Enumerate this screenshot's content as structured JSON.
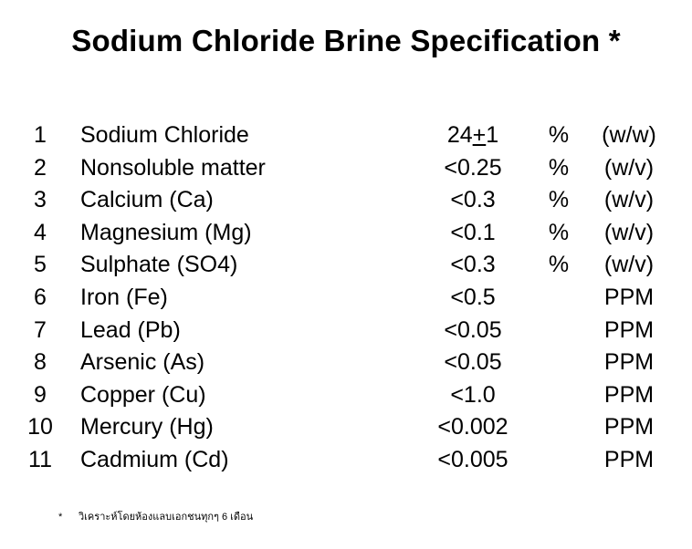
{
  "title": "Sodium Chloride Brine Specification *",
  "rows": [
    {
      "no": "1",
      "name": "Sodium Chloride",
      "value_a": "24",
      "value_pm": "+",
      "value_b": "1",
      "pct": "%",
      "unit": "(w/w)"
    },
    {
      "no": "2",
      "name": "Nonsoluble matter",
      "value": "<0.25",
      "pct": "%",
      "unit": "(w/v)"
    },
    {
      "no": "3",
      "name": "Calcium (Ca)",
      "value": "<0.3",
      "pct": "%",
      "unit": "(w/v)"
    },
    {
      "no": "4",
      "name": "Magnesium (Mg)",
      "value": "<0.1",
      "pct": "%",
      "unit": "(w/v)"
    },
    {
      "no": "5",
      "name": "Sulphate (SO4)",
      "value": "<0.3",
      "pct": "%",
      "unit": "(w/v)"
    },
    {
      "no": "6",
      "name": "Iron (Fe)",
      "value": "<0.5",
      "pct": "",
      "unit": "PPM"
    },
    {
      "no": "7",
      "name": "Lead (Pb)",
      "value": "<0.05",
      "pct": "",
      "unit": "PPM"
    },
    {
      "no": "8",
      "name": "Arsenic (As)",
      "value": "<0.05",
      "pct": "",
      "unit": "PPM"
    },
    {
      "no": "9",
      "name": "Copper (Cu)",
      "value": "<1.0",
      "pct": "",
      "unit": "PPM"
    },
    {
      "no": "10",
      "name": "Mercury (Hg)",
      "value": "<0.002",
      "pct": "",
      "unit": "PPM"
    },
    {
      "no": "11",
      "name": "Cadmium (Cd)",
      "value": "<0.005",
      "pct": "",
      "unit": "PPM"
    }
  ],
  "footnote": {
    "marker": "*",
    "text": "วิเคราะห์โดยห้องแลบเอกชนทุกๆ 6 เดือน"
  }
}
